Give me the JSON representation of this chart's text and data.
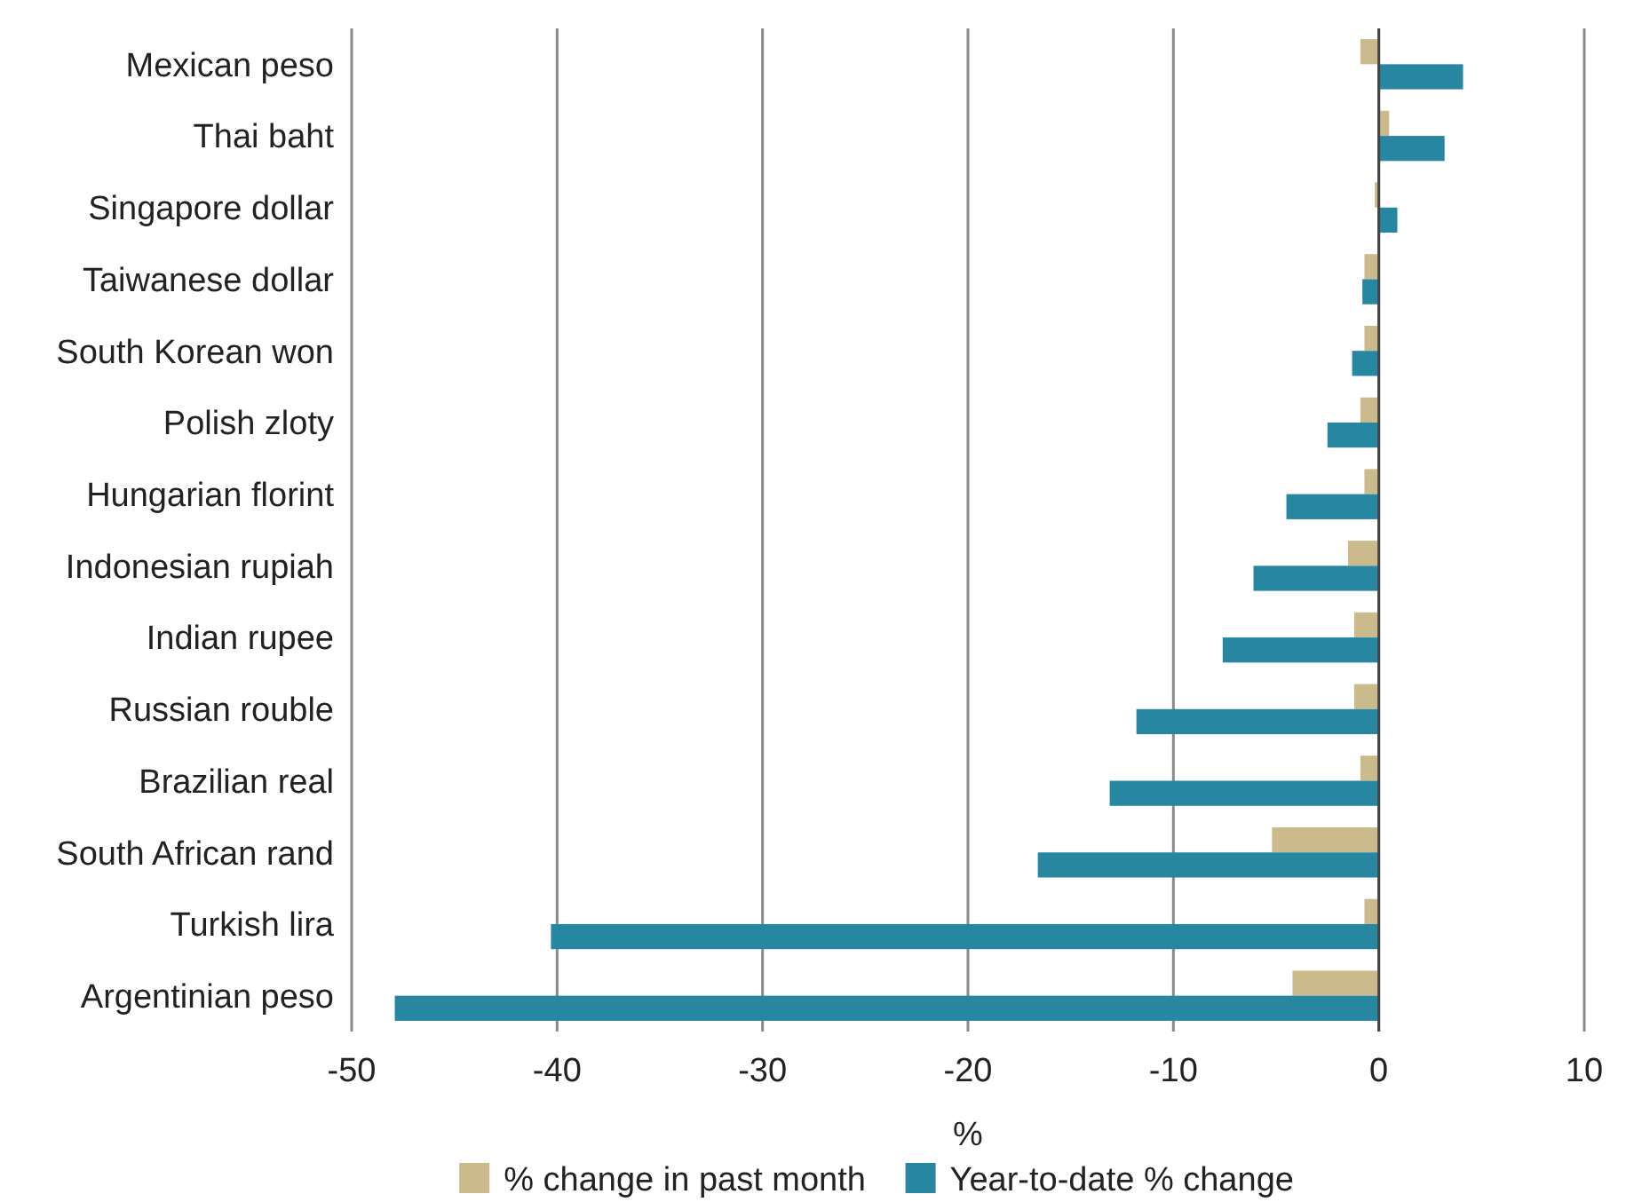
{
  "chart_data": {
    "type": "bar",
    "orientation": "horizontal",
    "xlabel": "%",
    "categories": [
      "Mexican peso",
      "Thai baht",
      "Singapore dollar",
      "Taiwanese dollar",
      "South Korean won",
      "Polish zloty",
      "Hungarian florint",
      "Indonesian rupiah",
      "Indian rupee",
      "Russian rouble",
      "Brazilian real",
      "South African rand",
      "Turkish lira",
      "Argentinian peso"
    ],
    "series": [
      {
        "name": "% change in past month",
        "color": "#cbba8b",
        "values": [
          -0.9,
          0.5,
          -0.2,
          -0.7,
          -0.7,
          -0.9,
          -0.7,
          -1.5,
          -1.2,
          -1.2,
          -0.9,
          -5.2,
          -0.7,
          -4.2
        ]
      },
      {
        "name": "Year-to-date % change",
        "color": "#2887a0",
        "values": [
          4.1,
          3.2,
          0.9,
          -0.8,
          -1.3,
          -2.5,
          -4.5,
          -6.1,
          -7.6,
          -11.8,
          -13.1,
          -16.6,
          -40.3,
          -47.9
        ]
      }
    ],
    "xlim": [
      -50,
      10
    ],
    "xticks": [
      -50,
      -40,
      -30,
      -20,
      -10,
      0,
      10
    ],
    "grid": "x",
    "legend": "bottom"
  }
}
